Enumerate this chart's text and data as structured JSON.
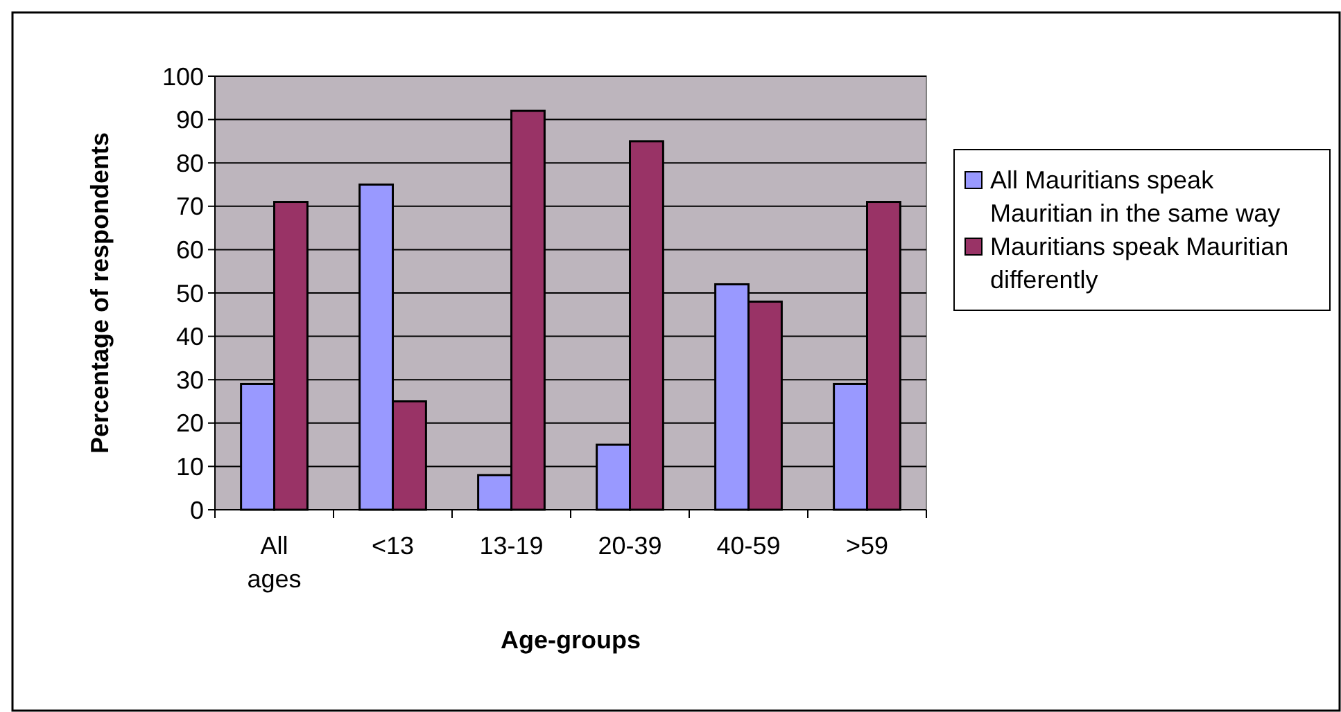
{
  "chart_data": {
    "type": "bar",
    "xlabel": "Age-groups",
    "ylabel": "Percentage of respondents",
    "categories": [
      "All ages",
      "<13",
      "13-19",
      "20-39",
      "40-59",
      ">59"
    ],
    "series": [
      {
        "name": "All Mauritians speak Mauritian in the same way",
        "color": "#9999ff",
        "values": [
          29,
          75,
          8,
          15,
          52,
          29
        ]
      },
      {
        "name": "Mauritians speak Mauritian differently",
        "color": "#993366",
        "values": [
          71,
          25,
          92,
          85,
          48,
          71
        ]
      }
    ],
    "ylim": [
      0,
      100
    ],
    "yticks": [
      0,
      10,
      20,
      30,
      40,
      50,
      60,
      70,
      80,
      90,
      100
    ],
    "grid": "y",
    "legend": "right"
  }
}
